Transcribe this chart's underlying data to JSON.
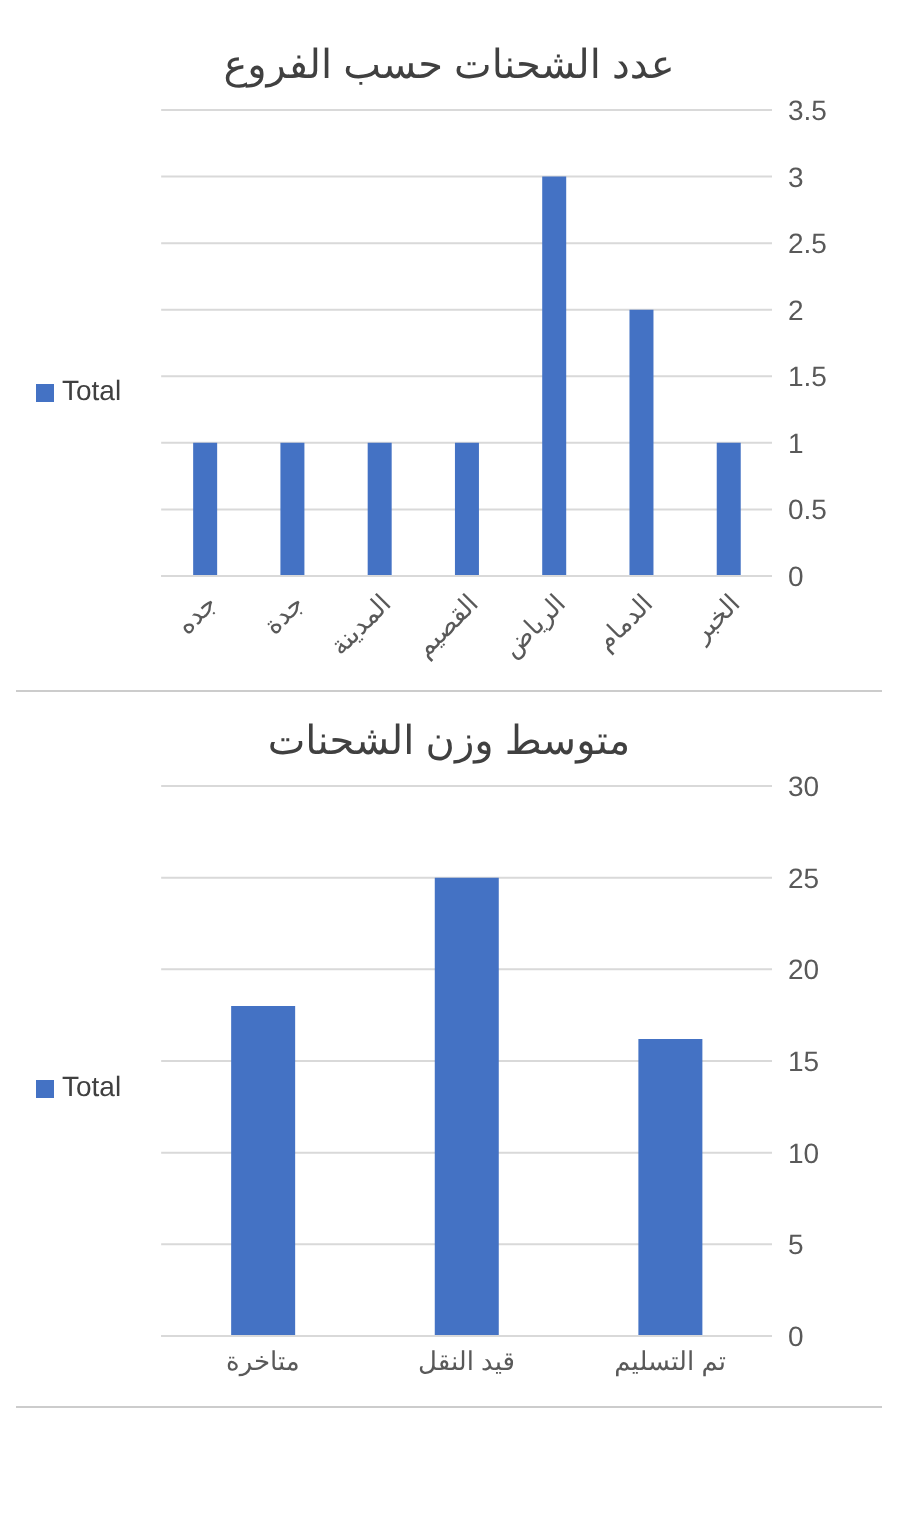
{
  "chart_data": [
    {
      "type": "bar",
      "title": "عدد الشحنات حسب الفروع",
      "categories": [
        "جده",
        "جدة",
        "المدينة",
        "القصيم",
        "الرياض",
        "الدمام",
        "الخبر"
      ],
      "series": [
        {
          "name": "Total",
          "color": "#4472c4",
          "values": [
            1,
            1,
            1,
            1,
            3,
            2,
            1
          ]
        }
      ],
      "ylim": [
        0,
        3.5
      ],
      "yticks": [
        0,
        0.5,
        1,
        1.5,
        2,
        2.5,
        3,
        3.5
      ],
      "grid": "y",
      "legend": "left"
    },
    {
      "type": "bar",
      "title": "متوسط وزن الشحنات",
      "categories": [
        "متاخرة",
        "قيد النقل",
        "تم التسليم"
      ],
      "series": [
        {
          "name": "Total",
          "color": "#4472c4",
          "values": [
            18,
            25,
            16.2
          ]
        }
      ],
      "ylim": [
        0,
        30
      ],
      "yticks": [
        0,
        5,
        10,
        15,
        20,
        25,
        30
      ],
      "grid": "y",
      "legend": "left"
    }
  ]
}
